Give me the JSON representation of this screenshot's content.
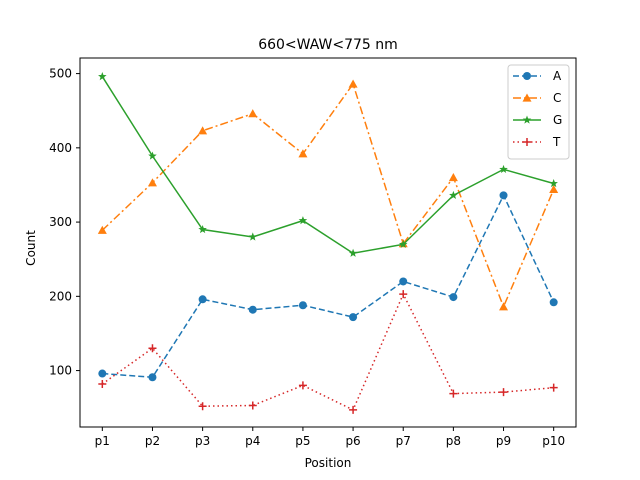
{
  "chart_data": {
    "type": "line",
    "title": "660<WAW<775 nm",
    "xlabel": "Position",
    "ylabel": "Count",
    "categories": [
      "p1",
      "p2",
      "p3",
      "p4",
      "p5",
      "p6",
      "p7",
      "p8",
      "p9",
      "p10"
    ],
    "ylim": [
      24,
      521
    ],
    "yticks": [
      100,
      200,
      300,
      400,
      500
    ],
    "grid": false,
    "legend_position": "top-right",
    "series": [
      {
        "name": "A",
        "color": "#1f77b4",
        "linestyle": "dashed",
        "marker": "circle",
        "values": [
          96,
          91,
          196,
          182,
          188,
          172,
          220,
          199,
          336,
          192
        ]
      },
      {
        "name": "C",
        "color": "#ff7f0e",
        "linestyle": "dash-dot",
        "marker": "triangle",
        "values": [
          289,
          353,
          423,
          446,
          392,
          486,
          271,
          360,
          186,
          344
        ]
      },
      {
        "name": "G",
        "color": "#2ca02c",
        "linestyle": "solid",
        "marker": "star",
        "values": [
          496,
          389,
          290,
          280,
          302,
          258,
          270,
          336,
          371,
          352
        ]
      },
      {
        "name": "T",
        "color": "#d62728",
        "linestyle": "dotted",
        "marker": "plus",
        "values": [
          82,
          130,
          52,
          53,
          80,
          47,
          203,
          69,
          71,
          77
        ]
      }
    ]
  }
}
